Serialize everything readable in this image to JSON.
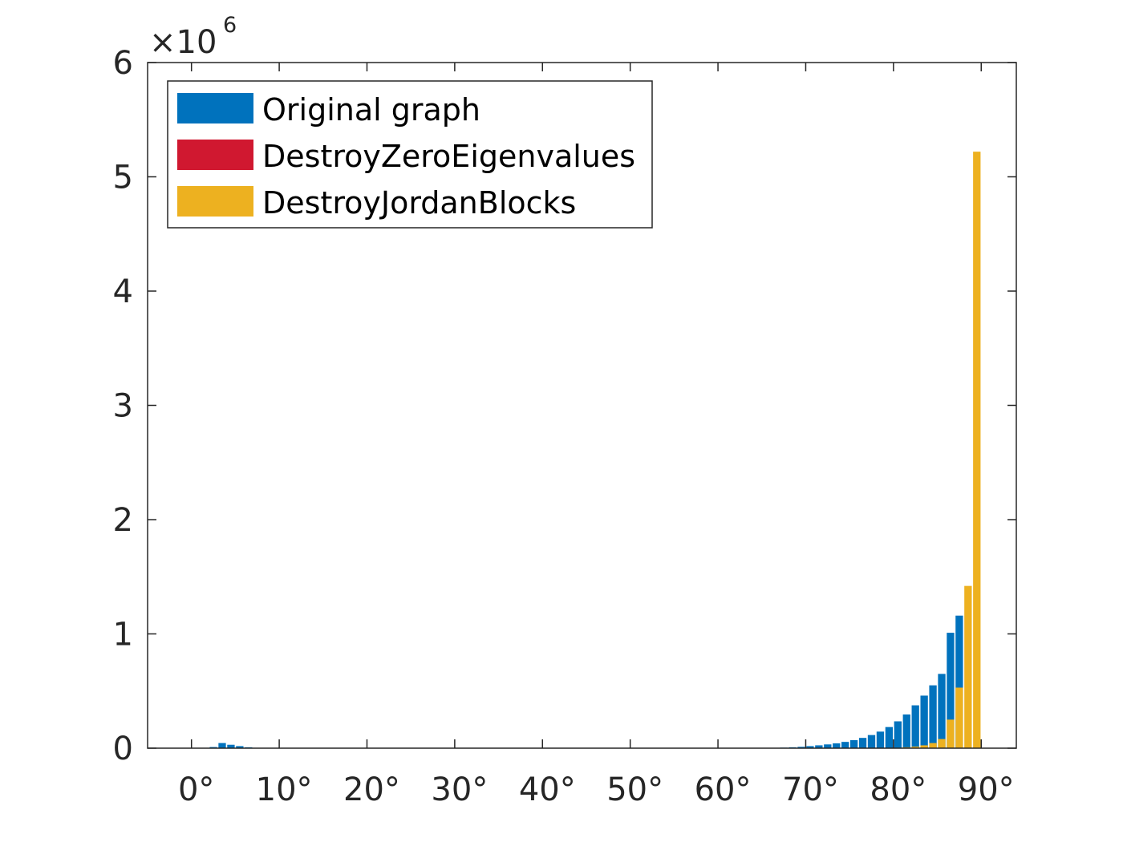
{
  "chart_data": {
    "type": "bar",
    "stacking": "overlaid",
    "x_tick_labels": [
      "0°",
      "10°",
      "20°",
      "30°",
      "40°",
      "50°",
      "60°",
      "70°",
      "80°",
      "90°"
    ],
    "x_ticks": [
      0,
      10,
      20,
      30,
      40,
      50,
      60,
      70,
      80,
      90
    ],
    "xlim": [
      -5,
      94
    ],
    "ylim": [
      0,
      6000000
    ],
    "y_ticks": [
      0,
      1000000,
      2000000,
      3000000,
      4000000,
      5000000,
      6000000
    ],
    "y_tick_labels": [
      "0",
      "1",
      "2",
      "3",
      "4",
      "5",
      "6"
    ],
    "y_exponent_prefix": "×10",
    "y_exponent": "6",
    "bin_width": 1,
    "legend_location": "top-left",
    "grid": false,
    "series": [
      {
        "name": "Original graph",
        "color": "#0072BD",
        "x": [
          2.5,
          3.5,
          4.5,
          5.5,
          6.5,
          66.5,
          67.5,
          68.5,
          69.5,
          70.5,
          71.5,
          72.5,
          73.5,
          74.5,
          75.5,
          76.5,
          77.5,
          78.5,
          79.5,
          80.5,
          81.5,
          82.5,
          83.5,
          84.5,
          85.5,
          86.5,
          87.5
        ],
        "values": [
          10000,
          45000,
          30000,
          18000,
          8000,
          3000,
          5000,
          8000,
          12000,
          18000,
          25000,
          33000,
          42000,
          55000,
          70000,
          90000,
          115000,
          145000,
          185000,
          235000,
          295000,
          375000,
          460000,
          550000,
          650000,
          1010000,
          1160000
        ]
      },
      {
        "name": "DestroyZeroEigenvalues",
        "color": "#D01830",
        "x": [],
        "values": []
      },
      {
        "name": "DestroyJordanBlocks",
        "color": "#EDB120",
        "x": [
          80.5,
          81.5,
          82.5,
          83.5,
          84.5,
          85.5,
          86.5,
          87.5,
          88.5,
          89.5
        ],
        "values": [
          4000,
          8000,
          14000,
          25000,
          45000,
          80000,
          250000,
          530000,
          1420000,
          5220000
        ]
      }
    ]
  }
}
